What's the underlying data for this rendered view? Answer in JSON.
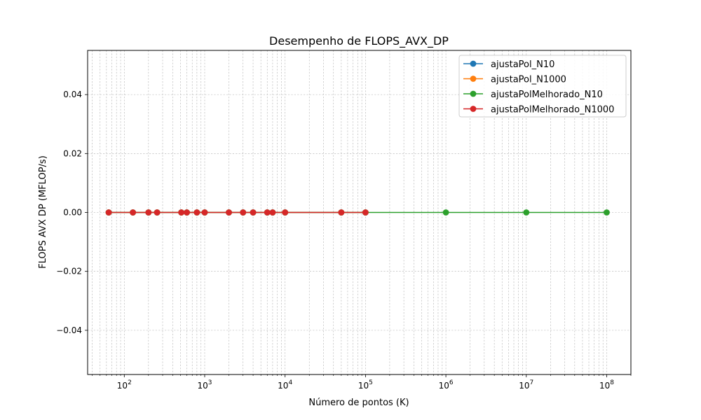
{
  "chart_data": {
    "type": "line",
    "title": "Desempenho de FLOPS_AVX_DP",
    "xlabel": "Número de pontos (K)",
    "ylabel": "FLOPS AVX DP (MFLOP/s)",
    "x_scale": "log",
    "xlim": [
      35,
      200000000
    ],
    "ylim": [
      -0.055,
      0.055
    ],
    "x_ticks": [
      {
        "value": 100,
        "base": "10",
        "exp": "2"
      },
      {
        "value": 1000,
        "base": "10",
        "exp": "3"
      },
      {
        "value": 10000,
        "base": "10",
        "exp": "4"
      },
      {
        "value": 100000,
        "base": "10",
        "exp": "5"
      },
      {
        "value": 1000000,
        "base": "10",
        "exp": "6"
      },
      {
        "value": 10000000,
        "base": "10",
        "exp": "7"
      },
      {
        "value": 100000000,
        "base": "10",
        "exp": "8"
      }
    ],
    "y_ticks": [
      {
        "value": 0.04,
        "label": "0.04"
      },
      {
        "value": 0.02,
        "label": "0.02"
      },
      {
        "value": 0.0,
        "label": "0.00"
      },
      {
        "value": -0.02,
        "label": "−0.02"
      },
      {
        "value": -0.04,
        "label": "−0.04"
      }
    ],
    "grid": true,
    "legend_position": "top-right",
    "series": [
      {
        "name": "ajustaPol_N10",
        "color": "#1f77b4",
        "x": [
          64,
          128,
          200,
          256,
          512,
          600,
          800,
          1000,
          2000,
          3000,
          4000,
          6000,
          7000,
          10000,
          50000,
          100000
        ],
        "y": [
          0,
          0,
          0,
          0,
          0,
          0,
          0,
          0,
          0,
          0,
          0,
          0,
          0,
          0,
          0,
          0
        ]
      },
      {
        "name": "ajustaPol_N1000",
        "color": "#ff7f0e",
        "x": [
          64,
          128,
          200,
          256,
          512,
          600,
          800,
          1000,
          2000,
          3000,
          4000,
          6000,
          7000,
          10000,
          50000,
          100000
        ],
        "y": [
          0,
          0,
          0,
          0,
          0,
          0,
          0,
          0,
          0,
          0,
          0,
          0,
          0,
          0,
          0,
          0
        ]
      },
      {
        "name": "ajustaPolMelhorado_N10",
        "color": "#2ca02c",
        "x": [
          64,
          128,
          200,
          256,
          512,
          600,
          800,
          1000,
          2000,
          3000,
          4000,
          6000,
          7000,
          10000,
          50000,
          100000,
          1000000,
          10000000,
          100000000
        ],
        "y": [
          0,
          0,
          0,
          0,
          0,
          0,
          0,
          0,
          0,
          0,
          0,
          0,
          0,
          0,
          0,
          0,
          0,
          0,
          0
        ]
      },
      {
        "name": "ajustaPolMelhorado_N1000",
        "color": "#d62728",
        "x": [
          64,
          128,
          200,
          256,
          512,
          600,
          800,
          1000,
          2000,
          3000,
          4000,
          6000,
          7000,
          10000,
          50000,
          100000
        ],
        "y": [
          0,
          0,
          0,
          0,
          0,
          0,
          0,
          0,
          0,
          0,
          0,
          0,
          0,
          0,
          0,
          0
        ]
      }
    ]
  }
}
